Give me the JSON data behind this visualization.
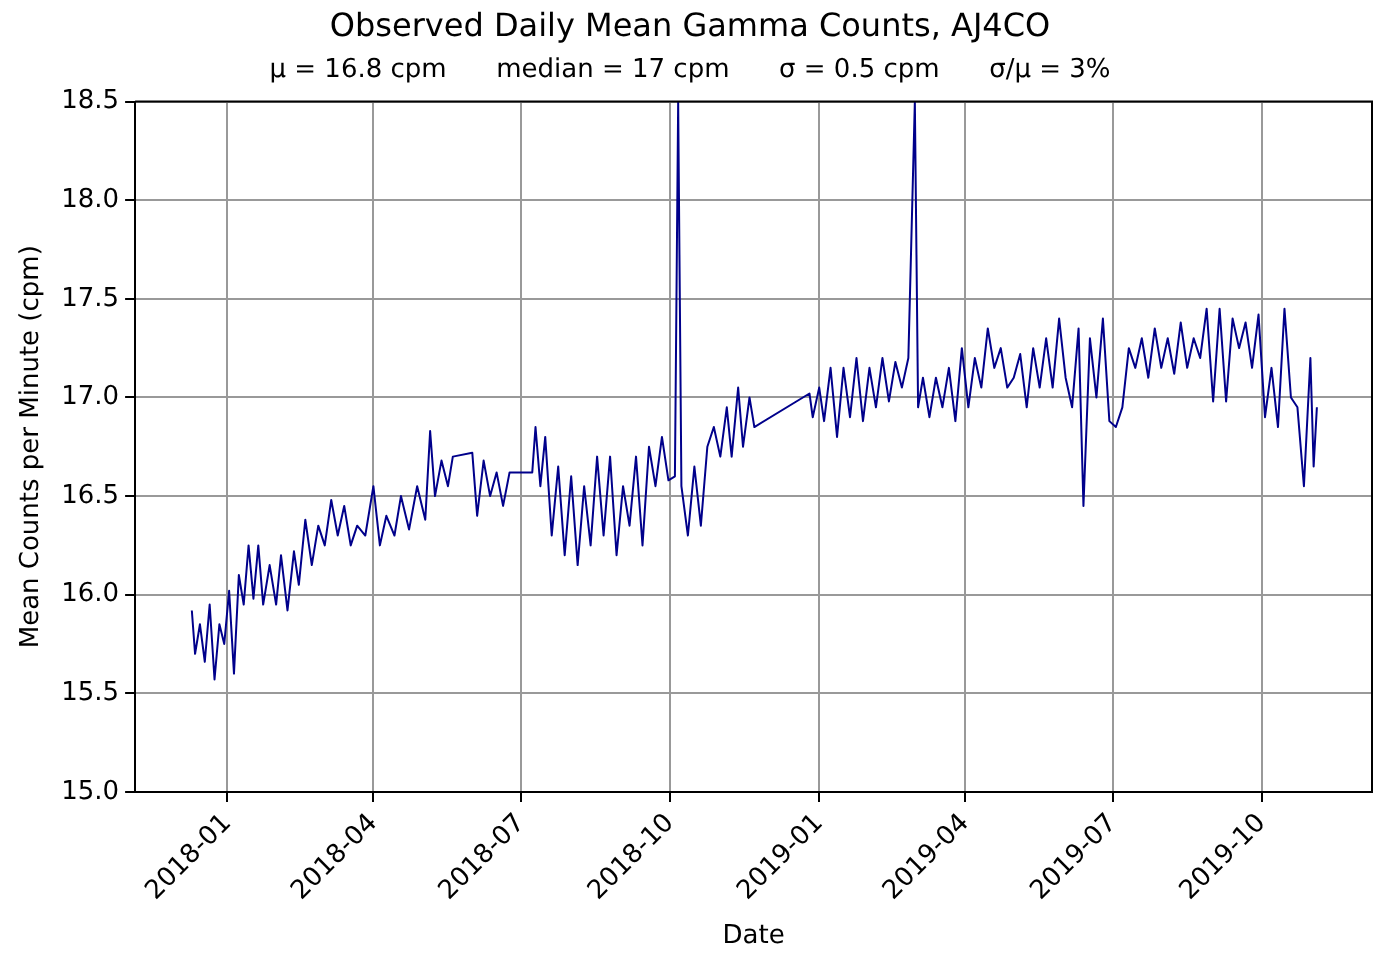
{
  "chart_data": {
    "type": "line",
    "title": "Observed Daily Mean Gamma Counts, AJ4CO",
    "subtitle": "μ = 16.8 cpm      median = 17 cpm      σ = 0.5 cpm      σ/μ = 3%",
    "xlabel": "Date",
    "ylabel": "Mean Counts per Minute (cpm)",
    "xlim": [
      "2017-11-05",
      "2019-12-08"
    ],
    "xticks": [
      "2018-01",
      "2018-04",
      "2018-07",
      "2018-10",
      "2019-01",
      "2019-04",
      "2019-07",
      "2019-10"
    ],
    "ylim": [
      15.0,
      18.5
    ],
    "yticks": [
      {
        "value": 15,
        "label": "15.0"
      },
      15.5,
      {
        "value": 16,
        "label": "16.0"
      },
      16.5,
      {
        "value": 17,
        "label": "17.0"
      },
      17.5,
      {
        "value": 18,
        "label": "18.0"
      },
      18.5
    ],
    "grid": true,
    "legend": false,
    "marker": "none",
    "line_style": "solid",
    "x": [
      "2017-12-10",
      "2017-12-12",
      "2017-12-15",
      "2017-12-18",
      "2017-12-21",
      "2017-12-24",
      "2017-12-27",
      "2017-12-30",
      "2018-01-02",
      "2018-01-05",
      "2018-01-08",
      "2018-01-11",
      "2018-01-14",
      "2018-01-17",
      "2018-01-20",
      "2018-01-23",
      "2018-01-27",
      "2018-01-31",
      "2018-02-03",
      "2018-02-07",
      "2018-02-11",
      "2018-02-14",
      "2018-02-18",
      "2018-02-22",
      "2018-02-26",
      "2018-03-02",
      "2018-03-06",
      "2018-03-10",
      "2018-03-14",
      "2018-03-18",
      "2018-03-22",
      "2018-03-27",
      "2018-04-01",
      "2018-04-05",
      "2018-04-09",
      "2018-04-14",
      "2018-04-18",
      "2018-04-23",
      "2018-04-28",
      "2018-05-03",
      "2018-05-06",
      "2018-05-09",
      "2018-05-13",
      "2018-05-17",
      "2018-05-20",
      "2018-06-01",
      "2018-06-04",
      "2018-06-08",
      "2018-06-12",
      "2018-06-16",
      "2018-06-20",
      "2018-06-24",
      "2018-07-08",
      "2018-07-10",
      "2018-07-13",
      "2018-07-16",
      "2018-07-20",
      "2018-07-24",
      "2018-07-28",
      "2018-08-01",
      "2018-08-05",
      "2018-08-09",
      "2018-08-13",
      "2018-08-17",
      "2018-08-21",
      "2018-08-25",
      "2018-08-29",
      "2018-09-02",
      "2018-09-06",
      "2018-09-10",
      "2018-09-14",
      "2018-09-18",
      "2018-09-22",
      "2018-09-26",
      "2018-09-30",
      "2018-10-04",
      "2018-10-06",
      "2018-10-08",
      "2018-10-12",
      "2018-10-16",
      "2018-10-20",
      "2018-10-24",
      "2018-10-28",
      "2018-11-01",
      "2018-11-05",
      "2018-11-08",
      "2018-11-12",
      "2018-11-15",
      "2018-11-19",
      "2018-11-22",
      "2018-12-26",
      "2018-12-28",
      "2019-01-01",
      "2019-01-04",
      "2019-01-08",
      "2019-01-12",
      "2019-01-16",
      "2019-01-20",
      "2019-01-24",
      "2019-01-28",
      "2019-02-01",
      "2019-02-05",
      "2019-02-09",
      "2019-02-13",
      "2019-02-17",
      "2019-02-21",
      "2019-02-25",
      "2019-03-01",
      "2019-03-03",
      "2019-03-06",
      "2019-03-10",
      "2019-03-14",
      "2019-03-18",
      "2019-03-22",
      "2019-03-26",
      "2019-03-30",
      "2019-04-03",
      "2019-04-07",
      "2019-04-11",
      "2019-04-15",
      "2019-04-19",
      "2019-04-23",
      "2019-04-27",
      "2019-05-01",
      "2019-05-05",
      "2019-05-09",
      "2019-05-13",
      "2019-05-17",
      "2019-05-21",
      "2019-05-25",
      "2019-05-29",
      "2019-06-02",
      "2019-06-06",
      "2019-06-10",
      "2019-06-13",
      "2019-06-17",
      "2019-06-21",
      "2019-06-25",
      "2019-06-29",
      "2019-07-03",
      "2019-07-07",
      "2019-07-11",
      "2019-07-15",
      "2019-07-19",
      "2019-07-23",
      "2019-07-27",
      "2019-07-31",
      "2019-08-04",
      "2019-08-08",
      "2019-08-12",
      "2019-08-16",
      "2019-08-20",
      "2019-08-24",
      "2019-08-28",
      "2019-09-01",
      "2019-09-05",
      "2019-09-09",
      "2019-09-13",
      "2019-09-17",
      "2019-09-21",
      "2019-09-25",
      "2019-09-29",
      "2019-10-03",
      "2019-10-07",
      "2019-10-11",
      "2019-10-15",
      "2019-10-19",
      "2019-10-23",
      "2019-10-27",
      "2019-10-31",
      "2019-11-02",
      "2019-11-04"
    ],
    "series": [
      {
        "color": "#00008b",
        "values": [
          15.92,
          15.7,
          15.85,
          15.66,
          15.95,
          15.57,
          15.85,
          15.75,
          16.02,
          15.6,
          16.1,
          15.95,
          16.25,
          15.98,
          16.25,
          15.95,
          16.15,
          15.95,
          16.2,
          15.92,
          16.22,
          16.05,
          16.38,
          16.15,
          16.35,
          16.25,
          16.48,
          16.3,
          16.45,
          16.25,
          16.35,
          16.3,
          16.55,
          16.25,
          16.4,
          16.3,
          16.5,
          16.33,
          16.55,
          16.38,
          16.83,
          16.5,
          16.68,
          16.55,
          16.7,
          16.72,
          16.4,
          16.68,
          16.5,
          16.62,
          16.45,
          16.62,
          16.62,
          16.85,
          16.55,
          16.8,
          16.3,
          16.65,
          16.2,
          16.6,
          16.15,
          16.55,
          16.25,
          16.7,
          16.3,
          16.7,
          16.2,
          16.55,
          16.35,
          16.7,
          16.25,
          16.75,
          16.55,
          16.8,
          16.58,
          16.6,
          18.5,
          16.55,
          16.3,
          16.65,
          16.35,
          16.75,
          16.85,
          16.7,
          16.95,
          16.7,
          17.05,
          16.75,
          17.0,
          16.85,
          17.02,
          16.9,
          17.05,
          16.88,
          17.15,
          16.8,
          17.15,
          16.9,
          17.2,
          16.88,
          17.15,
          16.95,
          17.2,
          16.98,
          17.18,
          17.05,
          17.2,
          18.5,
          16.95,
          17.1,
          16.9,
          17.1,
          16.95,
          17.15,
          16.88,
          17.25,
          16.95,
          17.2,
          17.05,
          17.35,
          17.15,
          17.25,
          17.05,
          17.1,
          17.22,
          16.95,
          17.25,
          17.05,
          17.3,
          17.05,
          17.4,
          17.1,
          16.95,
          17.35,
          16.45,
          17.3,
          17.0,
          17.4,
          16.88,
          16.85,
          16.95,
          17.25,
          17.15,
          17.3,
          17.1,
          17.35,
          17.15,
          17.3,
          17.12,
          17.38,
          17.15,
          17.3,
          17.2,
          17.45,
          16.98,
          17.45,
          16.98,
          17.4,
          17.25,
          17.38,
          17.15,
          17.42,
          16.9,
          17.15,
          16.85,
          17.45,
          17.0,
          16.95,
          16.55,
          17.2,
          16.65,
          16.95
        ]
      }
    ]
  }
}
